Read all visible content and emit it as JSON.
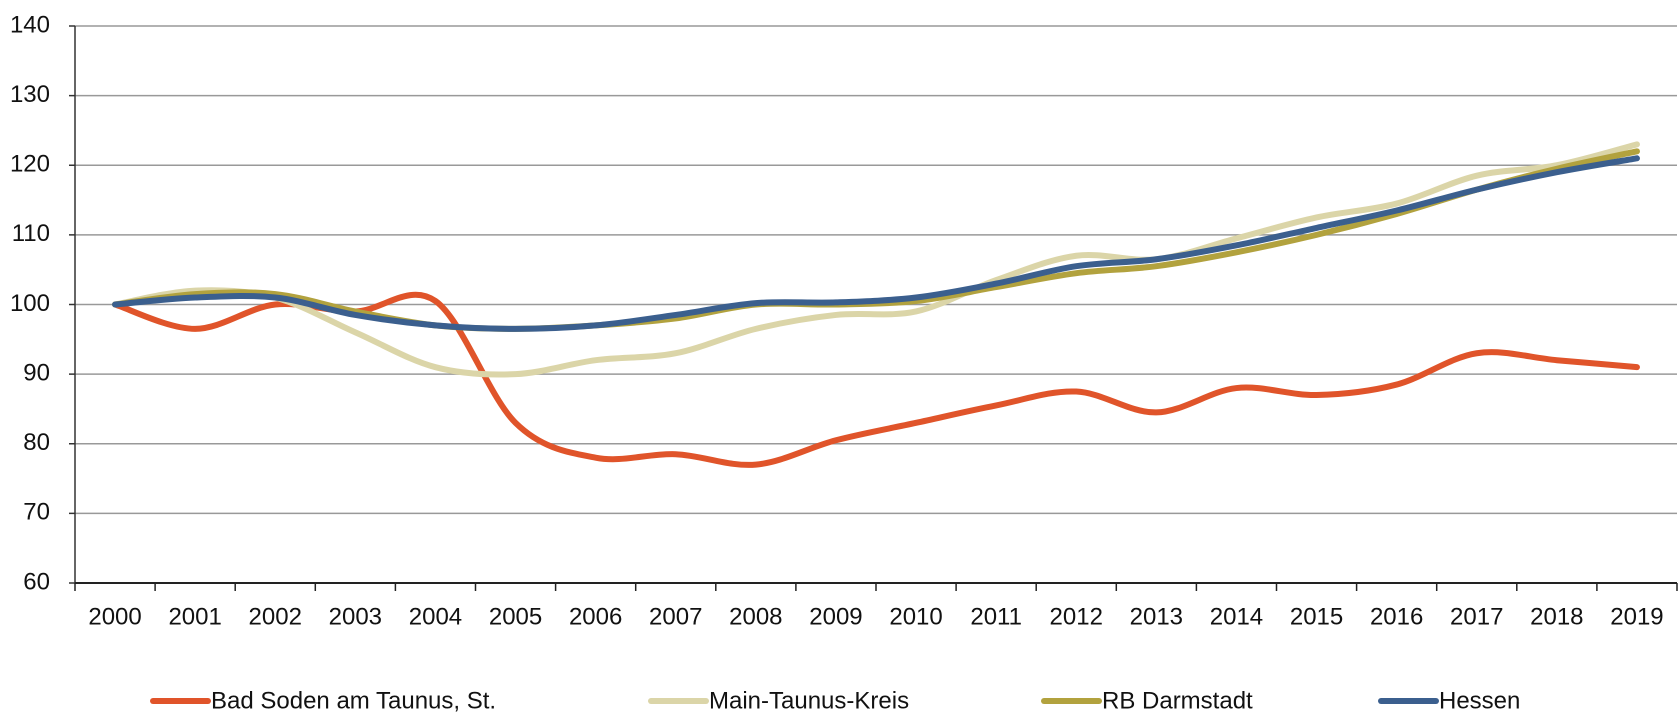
{
  "chart_data": {
    "type": "line",
    "categories": [
      "2000",
      "2001",
      "2002",
      "2003",
      "2004",
      "2005",
      "2006",
      "2007",
      "2008",
      "2009",
      "2010",
      "2011",
      "2012",
      "2013",
      "2014",
      "2015",
      "2016",
      "2017",
      "2018",
      "2019"
    ],
    "series": [
      {
        "name": "Bad Soden am Taunus, St.",
        "color": "#e0542a",
        "values": [
          100,
          96.5,
          100,
          99,
          100.5,
          83,
          78,
          78.5,
          77,
          80.5,
          83,
          85.5,
          87.5,
          84.5,
          88,
          87,
          88.5,
          93,
          92,
          91
        ]
      },
      {
        "name": "Main-Taunus-Kreis",
        "color": "#dbd5a8",
        "values": [
          100,
          102,
          101,
          96,
          91,
          90,
          92,
          93,
          96.5,
          98.5,
          99,
          103.5,
          107,
          106.5,
          109.5,
          112.5,
          114.5,
          118.5,
          120,
          123
        ]
      },
      {
        "name": "RB Darmstadt",
        "color": "#b2a23e",
        "values": [
          100,
          101.5,
          101.5,
          99,
          97,
          96.5,
          97,
          98,
          100,
          100,
          100.5,
          102.5,
          104.5,
          105.5,
          107.5,
          110,
          113,
          116.5,
          119.5,
          122
        ]
      },
      {
        "name": "Hessen",
        "color": "#3b5f8e",
        "values": [
          100,
          101,
          101,
          98.5,
          97,
          96.5,
          97,
          98.5,
          100.2,
          100.3,
          101,
          103,
          105.5,
          106.5,
          108.5,
          111,
          113.5,
          116.5,
          119,
          121
        ]
      }
    ],
    "ylim": [
      60,
      140
    ],
    "yticks": [
      60,
      70,
      80,
      90,
      100,
      110,
      120,
      130,
      140
    ],
    "grid": true,
    "legend": "bottom"
  }
}
